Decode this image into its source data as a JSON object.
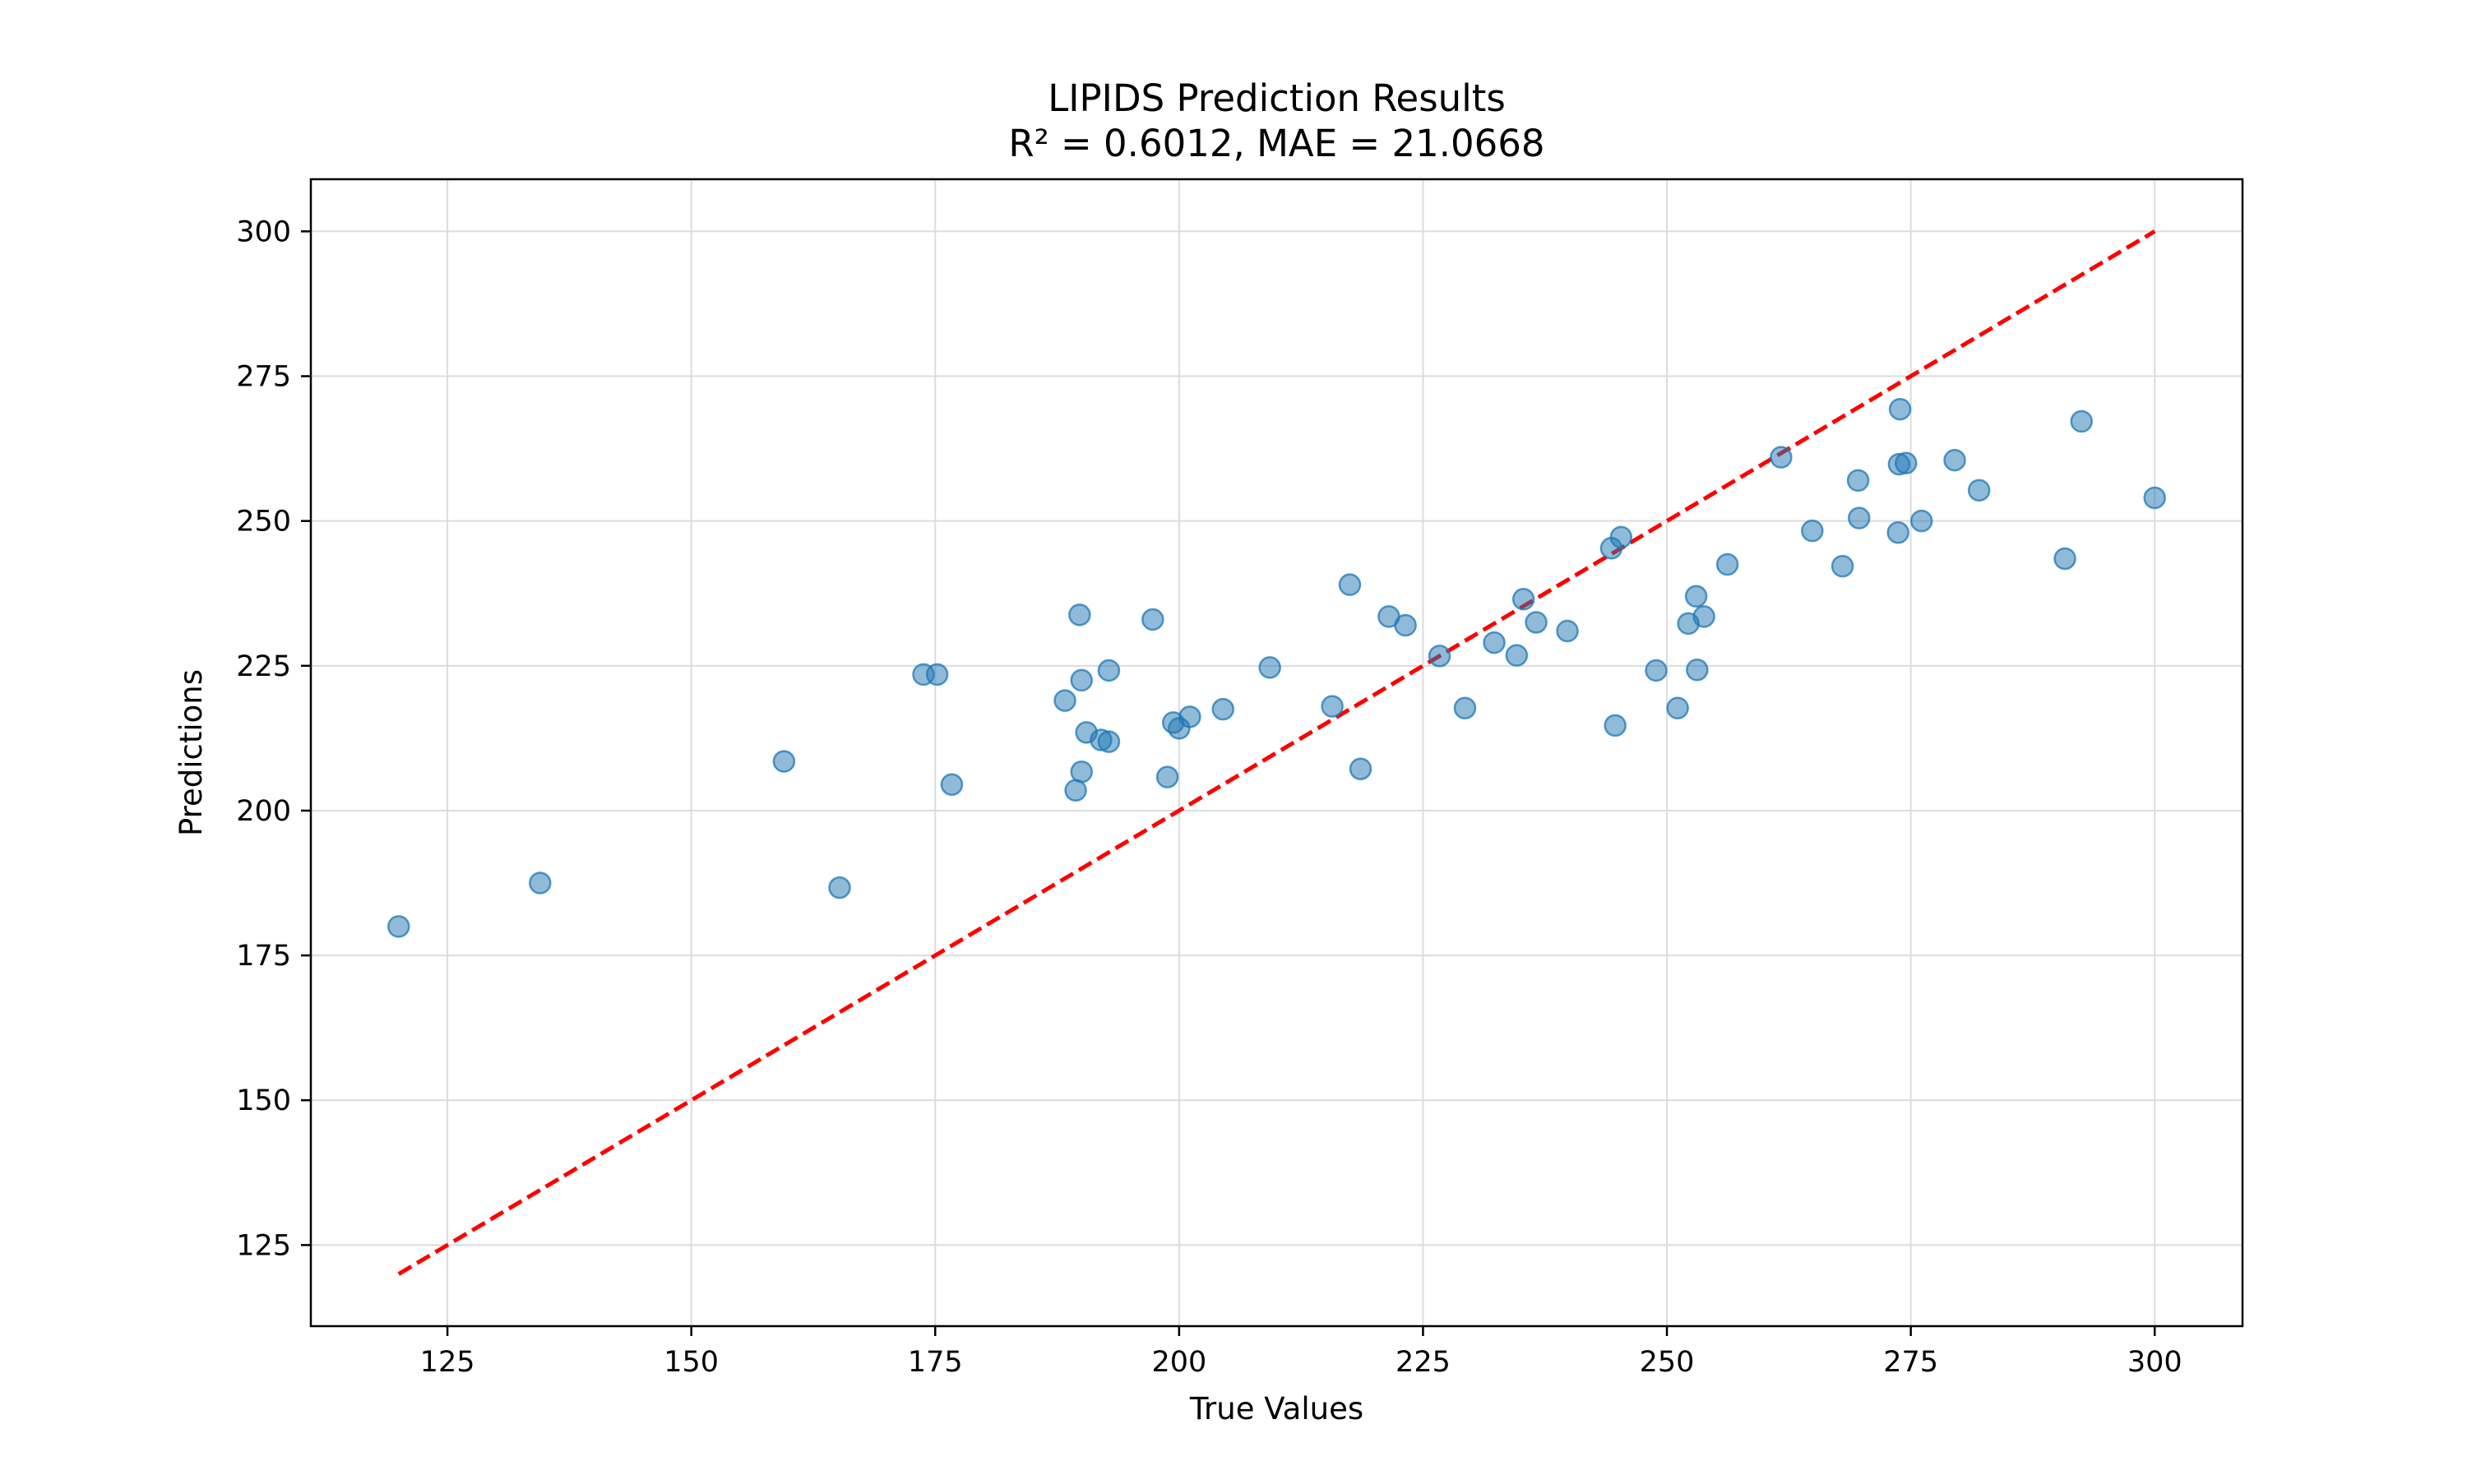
{
  "chart_data": {
    "type": "scatter",
    "title": "LIPIDS Prediction Results",
    "subtitle": "R² = 0.6012, MAE = 21.0668",
    "xlabel": "True Values",
    "ylabel": "Predictions",
    "xlim": [
      111,
      309
    ],
    "ylim": [
      111,
      309
    ],
    "xticks": [
      125,
      150,
      175,
      200,
      225,
      250,
      275,
      300
    ],
    "yticks": [
      125,
      150,
      175,
      200,
      225,
      250,
      275,
      300
    ],
    "grid": true,
    "point_color": "#1f77b4",
    "reference_line": {
      "from": [
        120,
        120
      ],
      "to": [
        300,
        300
      ],
      "color": "#ff0000",
      "style": "dashed"
    },
    "points": [
      [
        120,
        180
      ],
      [
        134.5,
        187.5
      ],
      [
        159.5,
        208.5
      ],
      [
        165.2,
        186.7
      ],
      [
        173.8,
        223.5
      ],
      [
        175.2,
        223.5
      ],
      [
        176.7,
        204.5
      ],
      [
        188.3,
        219
      ],
      [
        189.4,
        203.5
      ],
      [
        189.8,
        233.8
      ],
      [
        190,
        222.5
      ],
      [
        190,
        206.7
      ],
      [
        190.5,
        213.5
      ],
      [
        192,
        212.2
      ],
      [
        192.8,
        211.9
      ],
      [
        192.8,
        224.2
      ],
      [
        197.3,
        233
      ],
      [
        198.8,
        205.8
      ],
      [
        199.4,
        215.2
      ],
      [
        200,
        214.2
      ],
      [
        201.1,
        216.2
      ],
      [
        204.5,
        217.5
      ],
      [
        209.3,
        224.7
      ],
      [
        215.7,
        218
      ],
      [
        217.5,
        239
      ],
      [
        218.6,
        207.2
      ],
      [
        221.5,
        233.5
      ],
      [
        223.2,
        232
      ],
      [
        226.7,
        226.7
      ],
      [
        229.3,
        217.7
      ],
      [
        232.3,
        229
      ],
      [
        234.6,
        226.8
      ],
      [
        235.3,
        236.5
      ],
      [
        236.6,
        232.5
      ],
      [
        239.8,
        231
      ],
      [
        244.3,
        245.3
      ],
      [
        244.7,
        214.7
      ],
      [
        245.3,
        247.2
      ],
      [
        248.9,
        224.2
      ],
      [
        251.1,
        217.7
      ],
      [
        252.2,
        232.3
      ],
      [
        253,
        237
      ],
      [
        253.1,
        224.3
      ],
      [
        253.8,
        233.5
      ],
      [
        256.2,
        242.5
      ],
      [
        261.7,
        261
      ],
      [
        264.9,
        248.3
      ],
      [
        268,
        242.2
      ],
      [
        269.6,
        257
      ],
      [
        269.7,
        250.5
      ],
      [
        273.7,
        248
      ],
      [
        273.8,
        259.8
      ],
      [
        273.9,
        269.3
      ],
      [
        274.5,
        260
      ],
      [
        276.1,
        250
      ],
      [
        279.5,
        260.5
      ],
      [
        282,
        255.3
      ],
      [
        290.8,
        243.5
      ],
      [
        292.5,
        267.2
      ],
      [
        300,
        254
      ]
    ]
  }
}
